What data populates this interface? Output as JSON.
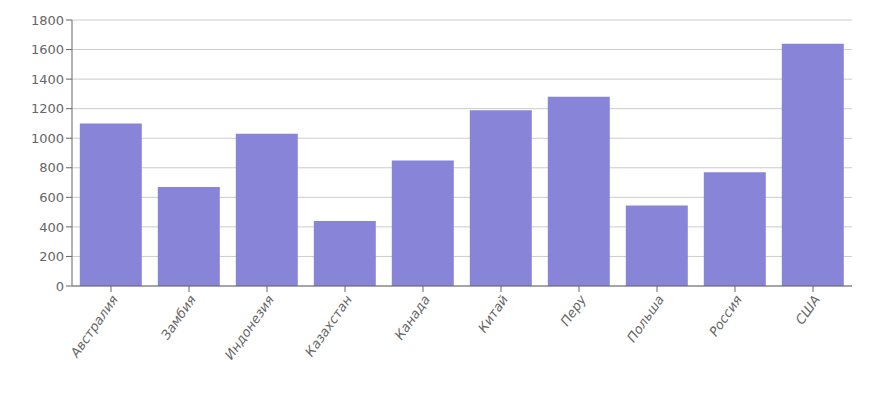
{
  "chart_data": {
    "type": "bar",
    "categories": [
      "Австралия",
      "Замбия",
      "Индонезия",
      "Казахстан",
      "Канада",
      "Китай",
      "Перу",
      "Польша",
      "Россия",
      "США"
    ],
    "values": [
      1100,
      670,
      1030,
      440,
      850,
      1190,
      1280,
      545,
      770,
      1640
    ],
    "color": "#8884d8",
    "ylim": [
      0,
      1800
    ],
    "yticks": [
      0,
      200,
      400,
      600,
      800,
      1000,
      1200,
      1400,
      1600,
      1800
    ],
    "grid": true
  }
}
